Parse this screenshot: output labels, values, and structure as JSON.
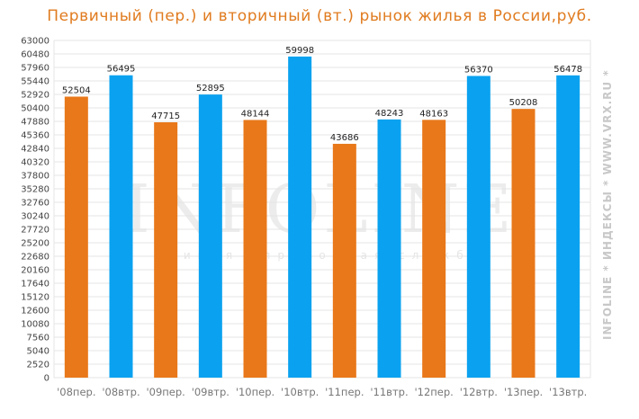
{
  "chart_data": {
    "type": "bar",
    "title": "Первичный (пер.) и вторичный (вт.) рынок жилья в России,руб.",
    "categories": [
      "'08пер.",
      "'08втр.",
      "'09пер.",
      "'09втр.",
      "'10пер.",
      "'10втр.",
      "'11пер.",
      "'11втр.",
      "'12пер.",
      "'12втр.",
      "'13пер.",
      "'13втр."
    ],
    "values": [
      52504,
      56495,
      47715,
      52895,
      48144,
      59998,
      43686,
      48243,
      48163,
      56370,
      50208,
      56478
    ],
    "bar_colors": [
      "#e8781a",
      "#0aa2f0",
      "#e8781a",
      "#0aa2f0",
      "#e8781a",
      "#0aa2f0",
      "#e8781a",
      "#0aa2f0",
      "#e8781a",
      "#0aa2f0",
      "#e8781a",
      "#0aa2f0"
    ],
    "ylim": [
      0,
      63000
    ],
    "yticks": [
      0,
      2520,
      5040,
      7560,
      10080,
      12600,
      15120,
      17640,
      20160,
      22680,
      25200,
      27720,
      30240,
      32760,
      35280,
      37800,
      40320,
      42840,
      45360,
      47880,
      50400,
      52920,
      55440,
      57960,
      60480,
      63000
    ],
    "grid": true,
    "xlabel": "",
    "ylabel": ""
  },
  "watermark": {
    "main": "INFOLINE",
    "tagline": "Единая справочная служба",
    "side": "INFOLINE * ИНДЕКСЫ * WWW.VRX.RU *"
  }
}
